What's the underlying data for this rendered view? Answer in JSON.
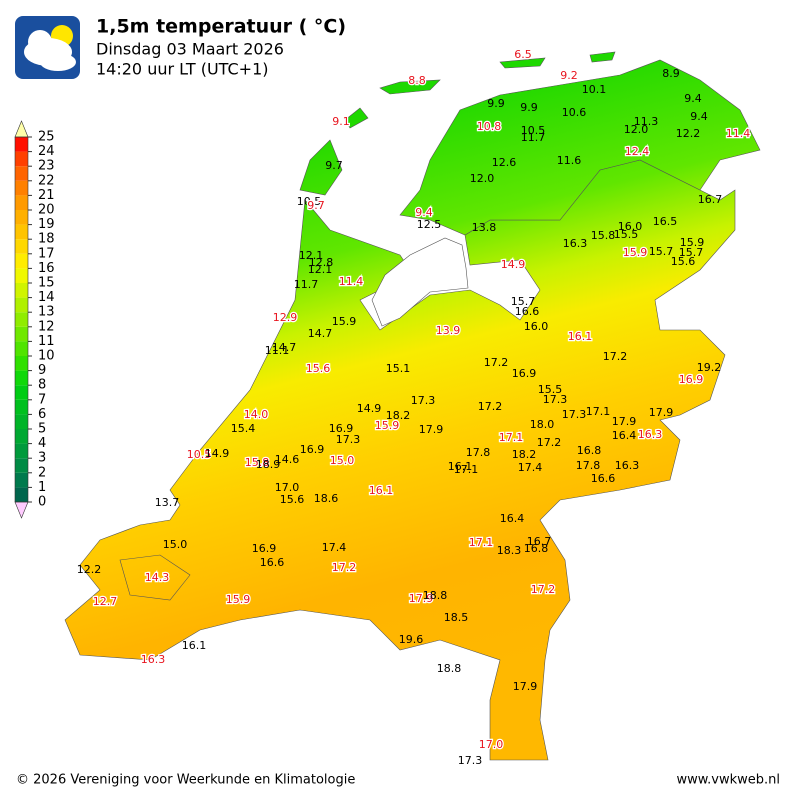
{
  "title": "1,5m temperatuur ( °C)",
  "subtitle": [
    "Dinsdag 03 Maart 2026",
    "14:20 uur LT (UTC+1)"
  ],
  "colorbar": {
    "ticks": [
      0,
      1,
      2,
      3,
      4,
      5,
      6,
      7,
      8,
      9,
      10,
      11,
      12,
      13,
      14,
      15,
      16,
      17,
      18,
      19,
      20,
      21,
      22,
      23,
      24,
      25
    ],
    "colors": [
      "#00664d",
      "#007a4d",
      "#008b45",
      "#009a3c",
      "#00a832",
      "#00b428",
      "#00c01e",
      "#00cc14",
      "#10d80a",
      "#30e000",
      "#50e400",
      "#70e800",
      "#90ec00",
      "#b0f000",
      "#d0f400",
      "#f0f800",
      "#ffec00",
      "#ffd800",
      "#ffc400",
      "#ffb000",
      "#ff9a00",
      "#ff8000",
      "#ff6400",
      "#ff4000",
      "#ff1000"
    ],
    "over_color": "#ffffaa",
    "under_color": "#ffccff"
  },
  "stations": [
    {
      "label": "6.5",
      "red": true
    },
    {
      "label": "9.2",
      "red": true
    },
    {
      "label": "8.9",
      "red": false
    },
    {
      "label": "8.8",
      "red": true
    },
    {
      "label": "10.1",
      "red": false
    },
    {
      "label": "9.9",
      "red": false
    },
    {
      "label": "9.9",
      "red": false
    },
    {
      "label": "10.6",
      "red": false
    },
    {
      "label": "9.4",
      "red": false
    },
    {
      "label": "9.4",
      "red": false
    },
    {
      "label": "9.1",
      "red": true
    },
    {
      "label": "11.3",
      "red": false
    },
    {
      "label": "10.8",
      "red": true
    },
    {
      "label": "10.5",
      "red": false
    },
    {
      "label": "12.0",
      "red": false
    },
    {
      "label": "12.2",
      "red": false
    },
    {
      "label": "11.4",
      "red": true
    },
    {
      "label": "11.7",
      "red": false
    },
    {
      "label": "12.4",
      "red": true
    },
    {
      "label": "11.6",
      "red": false
    },
    {
      "label": "12.6",
      "red": false
    },
    {
      "label": "9.7",
      "red": false
    },
    {
      "label": "12.0",
      "red": false
    },
    {
      "label": "10.5",
      "red": false
    },
    {
      "label": "9.7",
      "red": true
    },
    {
      "label": "16.7",
      "red": false
    },
    {
      "label": "9.4",
      "red": true
    },
    {
      "label": "12.5",
      "red": false
    },
    {
      "label": "13.8",
      "red": false
    },
    {
      "label": "16.0",
      "red": false
    },
    {
      "label": "16.5",
      "red": false
    },
    {
      "label": "15.8",
      "red": false
    },
    {
      "label": "15.5",
      "red": false
    },
    {
      "label": "15.9",
      "red": false
    },
    {
      "label": "16.3",
      "red": false
    },
    {
      "label": "12.1",
      "red": false
    },
    {
      "label": "15.9",
      "red": true
    },
    {
      "label": "15.7",
      "red": false
    },
    {
      "label": "15.7",
      "red": false
    },
    {
      "label": "12.8",
      "red": false
    },
    {
      "label": "12.1",
      "red": false
    },
    {
      "label": "15.6",
      "red": false
    },
    {
      "label": "14.9",
      "red": true
    },
    {
      "label": "11.4",
      "red": true
    },
    {
      "label": "11.7",
      "red": false
    },
    {
      "label": "15.7",
      "red": false
    },
    {
      "label": "16.6",
      "red": false
    },
    {
      "label": "12.9",
      "red": true
    },
    {
      "label": "15.9",
      "red": false
    },
    {
      "label": "16.0",
      "red": false
    },
    {
      "label": "13.9",
      "red": true
    },
    {
      "label": "14.7",
      "red": false
    },
    {
      "label": "16.1",
      "red": true
    },
    {
      "label": "14.7",
      "red": false
    },
    {
      "label": "11.1",
      "red": false
    },
    {
      "label": "17.2",
      "red": false
    },
    {
      "label": "17.2",
      "red": false
    },
    {
      "label": "15.6",
      "red": true
    },
    {
      "label": "15.1",
      "red": false
    },
    {
      "label": "16.9",
      "red": false
    },
    {
      "label": "19.2",
      "red": false
    },
    {
      "label": "16.9",
      "red": true
    },
    {
      "label": "15.5",
      "red": false
    },
    {
      "label": "17.3",
      "red": false
    },
    {
      "label": "17.3",
      "red": false
    },
    {
      "label": "17.2",
      "red": false
    },
    {
      "label": "14.9",
      "red": false
    },
    {
      "label": "18.2",
      "red": false
    },
    {
      "label": "17.1",
      "red": false
    },
    {
      "label": "17.3",
      "red": false
    },
    {
      "label": "17.9",
      "red": false
    },
    {
      "label": "14.0",
      "red": true
    },
    {
      "label": "15.4",
      "red": false
    },
    {
      "label": "18.0",
      "red": false
    },
    {
      "label": "17.9",
      "red": false
    },
    {
      "label": "16.9",
      "red": false
    },
    {
      "label": "17.9",
      "red": false
    },
    {
      "label": "15.9",
      "red": true
    },
    {
      "label": "16.4",
      "red": false
    },
    {
      "label": "16.3",
      "red": true
    },
    {
      "label": "17.3",
      "red": false
    },
    {
      "label": "17.1",
      "red": true
    },
    {
      "label": "17.2",
      "red": false
    },
    {
      "label": "16.9",
      "red": false
    },
    {
      "label": "16.8",
      "red": false
    },
    {
      "label": "17.8",
      "red": false
    },
    {
      "label": "18.2",
      "red": false
    },
    {
      "label": "10.5",
      "red": true
    },
    {
      "label": "14.9",
      "red": false
    },
    {
      "label": "14.6",
      "red": false
    },
    {
      "label": "15.0",
      "red": true
    },
    {
      "label": "15.8",
      "red": true
    },
    {
      "label": "18.9",
      "red": false
    },
    {
      "label": "16.1",
      "red": false
    },
    {
      "label": "17.1",
      "red": false
    },
    {
      "label": "17.4",
      "red": false
    },
    {
      "label": "17.8",
      "red": false
    },
    {
      "label": "16.3",
      "red": false
    },
    {
      "label": "16.6",
      "red": false
    },
    {
      "label": "17.0",
      "red": false
    },
    {
      "label": "16.1",
      "red": true
    },
    {
      "label": "15.6",
      "red": false
    },
    {
      "label": "18.6",
      "red": false
    },
    {
      "label": "13.7",
      "red": false
    },
    {
      "label": "16.4",
      "red": false
    },
    {
      "label": "17.1",
      "red": true
    },
    {
      "label": "16.7",
      "red": false
    },
    {
      "label": "18.3",
      "red": false
    },
    {
      "label": "16.8",
      "red": false
    },
    {
      "label": "15.0",
      "red": false
    },
    {
      "label": "16.9",
      "red": false
    },
    {
      "label": "17.4",
      "red": false
    },
    {
      "label": "16.6",
      "red": false
    },
    {
      "label": "17.2",
      "red": true
    },
    {
      "label": "12.2",
      "red": false
    },
    {
      "label": "14.3",
      "red": true
    },
    {
      "label": "17.2",
      "red": true
    },
    {
      "label": "17.9",
      "red": true
    },
    {
      "label": "18.8",
      "red": false
    },
    {
      "label": "12.7",
      "red": true
    },
    {
      "label": "15.9",
      "red": true
    },
    {
      "label": "18.5",
      "red": false
    },
    {
      "label": "19.6",
      "red": false
    },
    {
      "label": "16.1",
      "red": false
    },
    {
      "label": "16.3",
      "red": true
    },
    {
      "label": "18.8",
      "red": false
    },
    {
      "label": "17.9",
      "red": false
    },
    {
      "label": "17.0",
      "red": true
    },
    {
      "label": "17.3",
      "red": false
    }
  ],
  "footer": {
    "left": "© 2026 Vereniging voor Weerkunde en Klimatologie",
    "right": "www.vwkweb.nl"
  }
}
